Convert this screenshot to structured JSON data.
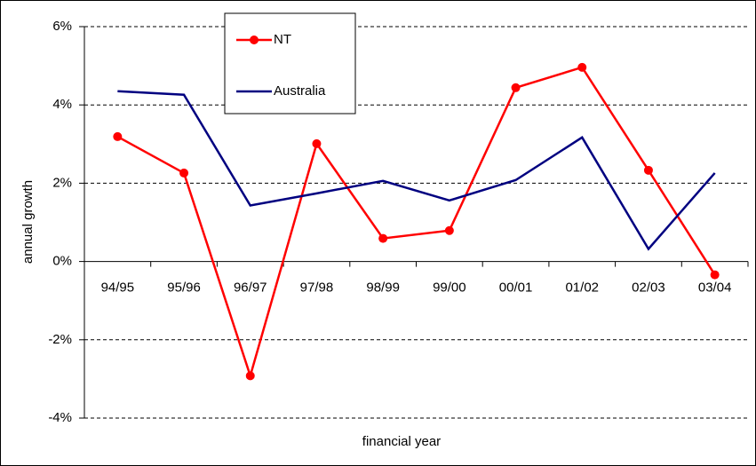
{
  "chart_data": {
    "type": "line",
    "x_label": "financial year",
    "y_label": "annual growth",
    "categories": [
      "94/95",
      "95/96",
      "96/97",
      "97/98",
      "98/99",
      "99/00",
      "00/01",
      "01/02",
      "02/03",
      "03/04"
    ],
    "series": [
      {
        "name": "NT",
        "color": "#ff0000",
        "marker": true,
        "values": [
          3.19,
          2.26,
          -2.92,
          3.01,
          0.59,
          0.79,
          4.44,
          4.96,
          2.33,
          -0.34
        ]
      },
      {
        "name": "Australia",
        "color": "#000080",
        "marker": false,
        "values": [
          4.35,
          4.26,
          1.43,
          1.74,
          2.06,
          1.56,
          2.08,
          3.17,
          0.32,
          2.26
        ]
      }
    ],
    "ylim": [
      -4,
      6
    ],
    "yticks": [
      {
        "value": -4,
        "label": "-4%"
      },
      {
        "value": -2,
        "label": "-2%"
      },
      {
        "value": 0,
        "label": "0%"
      },
      {
        "value": 2,
        "label": "2%"
      },
      {
        "value": 4,
        "label": "4%"
      },
      {
        "value": 6,
        "label": "6%"
      }
    ],
    "grid": true
  }
}
